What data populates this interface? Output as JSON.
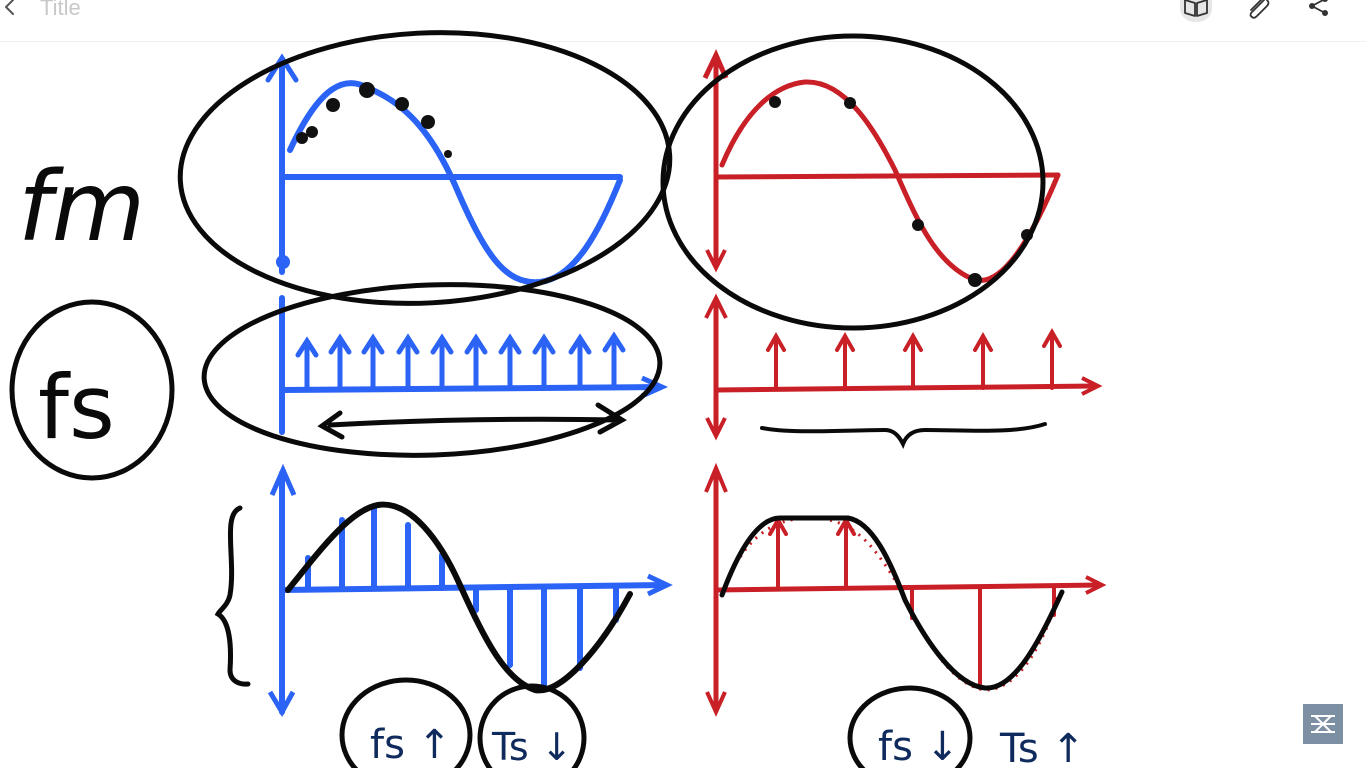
{
  "header": {
    "title": "Title",
    "icons": [
      "back-arrow-icon",
      "book-icon",
      "paperclip-icon",
      "share-icon"
    ]
  },
  "sketch": {
    "row_labels": [
      "fm",
      "fs"
    ],
    "bottom_notes": [
      "fs ↑",
      "Ts ↓",
      "fs ↓",
      "Ts ↑"
    ]
  },
  "colors": {
    "blue": "#2a63f5",
    "red": "#c91f26",
    "ink": "#0a0a0a",
    "navy": "#0f2a5c"
  }
}
